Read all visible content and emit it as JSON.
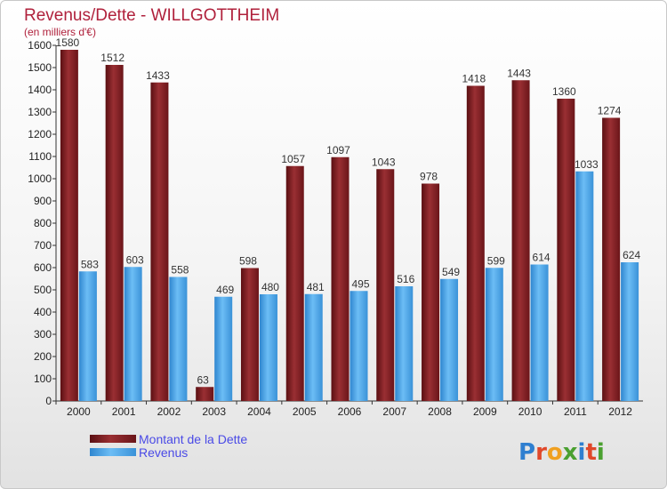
{
  "chart_data": {
    "type": "bar",
    "title": "Revenus/Dette - WILLGOTTHEIM",
    "subtitle": "(en milliers d'€)",
    "categories": [
      "2000",
      "2001",
      "2002",
      "2003",
      "2004",
      "2005",
      "2006",
      "2007",
      "2008",
      "2009",
      "2010",
      "2011",
      "2012"
    ],
    "series": [
      {
        "name": "Montant de la Dette",
        "color": "#7a1f22",
        "values": [
          1580,
          1512,
          1433,
          63,
          598,
          1057,
          1097,
          1043,
          978,
          1418,
          1443,
          1360,
          1274
        ]
      },
      {
        "name": "Revenus",
        "color": "#4aa3e8",
        "values": [
          583,
          603,
          558,
          469,
          480,
          481,
          495,
          516,
          549,
          599,
          614,
          1033,
          624
        ]
      }
    ],
    "ylim": [
      0,
      1600
    ],
    "ytick_step": 100,
    "grid": false,
    "legend_position": "bottom-left"
  },
  "logo": {
    "text": "Proxiti",
    "icon": "proxiti-logo"
  }
}
